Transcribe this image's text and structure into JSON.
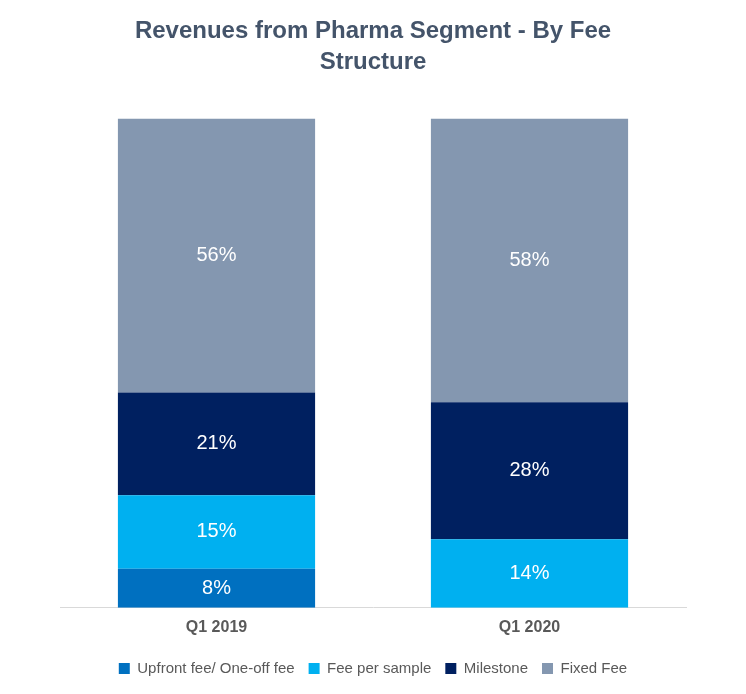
{
  "chart_data": {
    "type": "bar",
    "title": "Revenues from Pharma Segment - By Fee Structure",
    "categories": [
      "Q1 2019",
      "Q1 2020"
    ],
    "series": [
      {
        "name": "Upfront fee/ One-off fee",
        "color": "#0070C0",
        "values": [
          8,
          null
        ],
        "value_labels": [
          "8%",
          null
        ]
      },
      {
        "name": "Fee per sample",
        "color": "#00B0F0",
        "values": [
          15,
          14
        ],
        "value_labels": [
          "15%",
          "14%"
        ]
      },
      {
        "name": "Milestone",
        "color": "#002060",
        "values": [
          21,
          28
        ],
        "value_labels": [
          "21%",
          "28%"
        ]
      },
      {
        "name": "Fixed Fee",
        "color": "#8497B0",
        "values": [
          56,
          58
        ],
        "value_labels": [
          "56%",
          "58%"
        ]
      }
    ],
    "ylim": [
      0,
      100
    ],
    "stacked": true,
    "data_labels": true,
    "grid": false,
    "legend": "bottom",
    "tick_labels": "x"
  }
}
